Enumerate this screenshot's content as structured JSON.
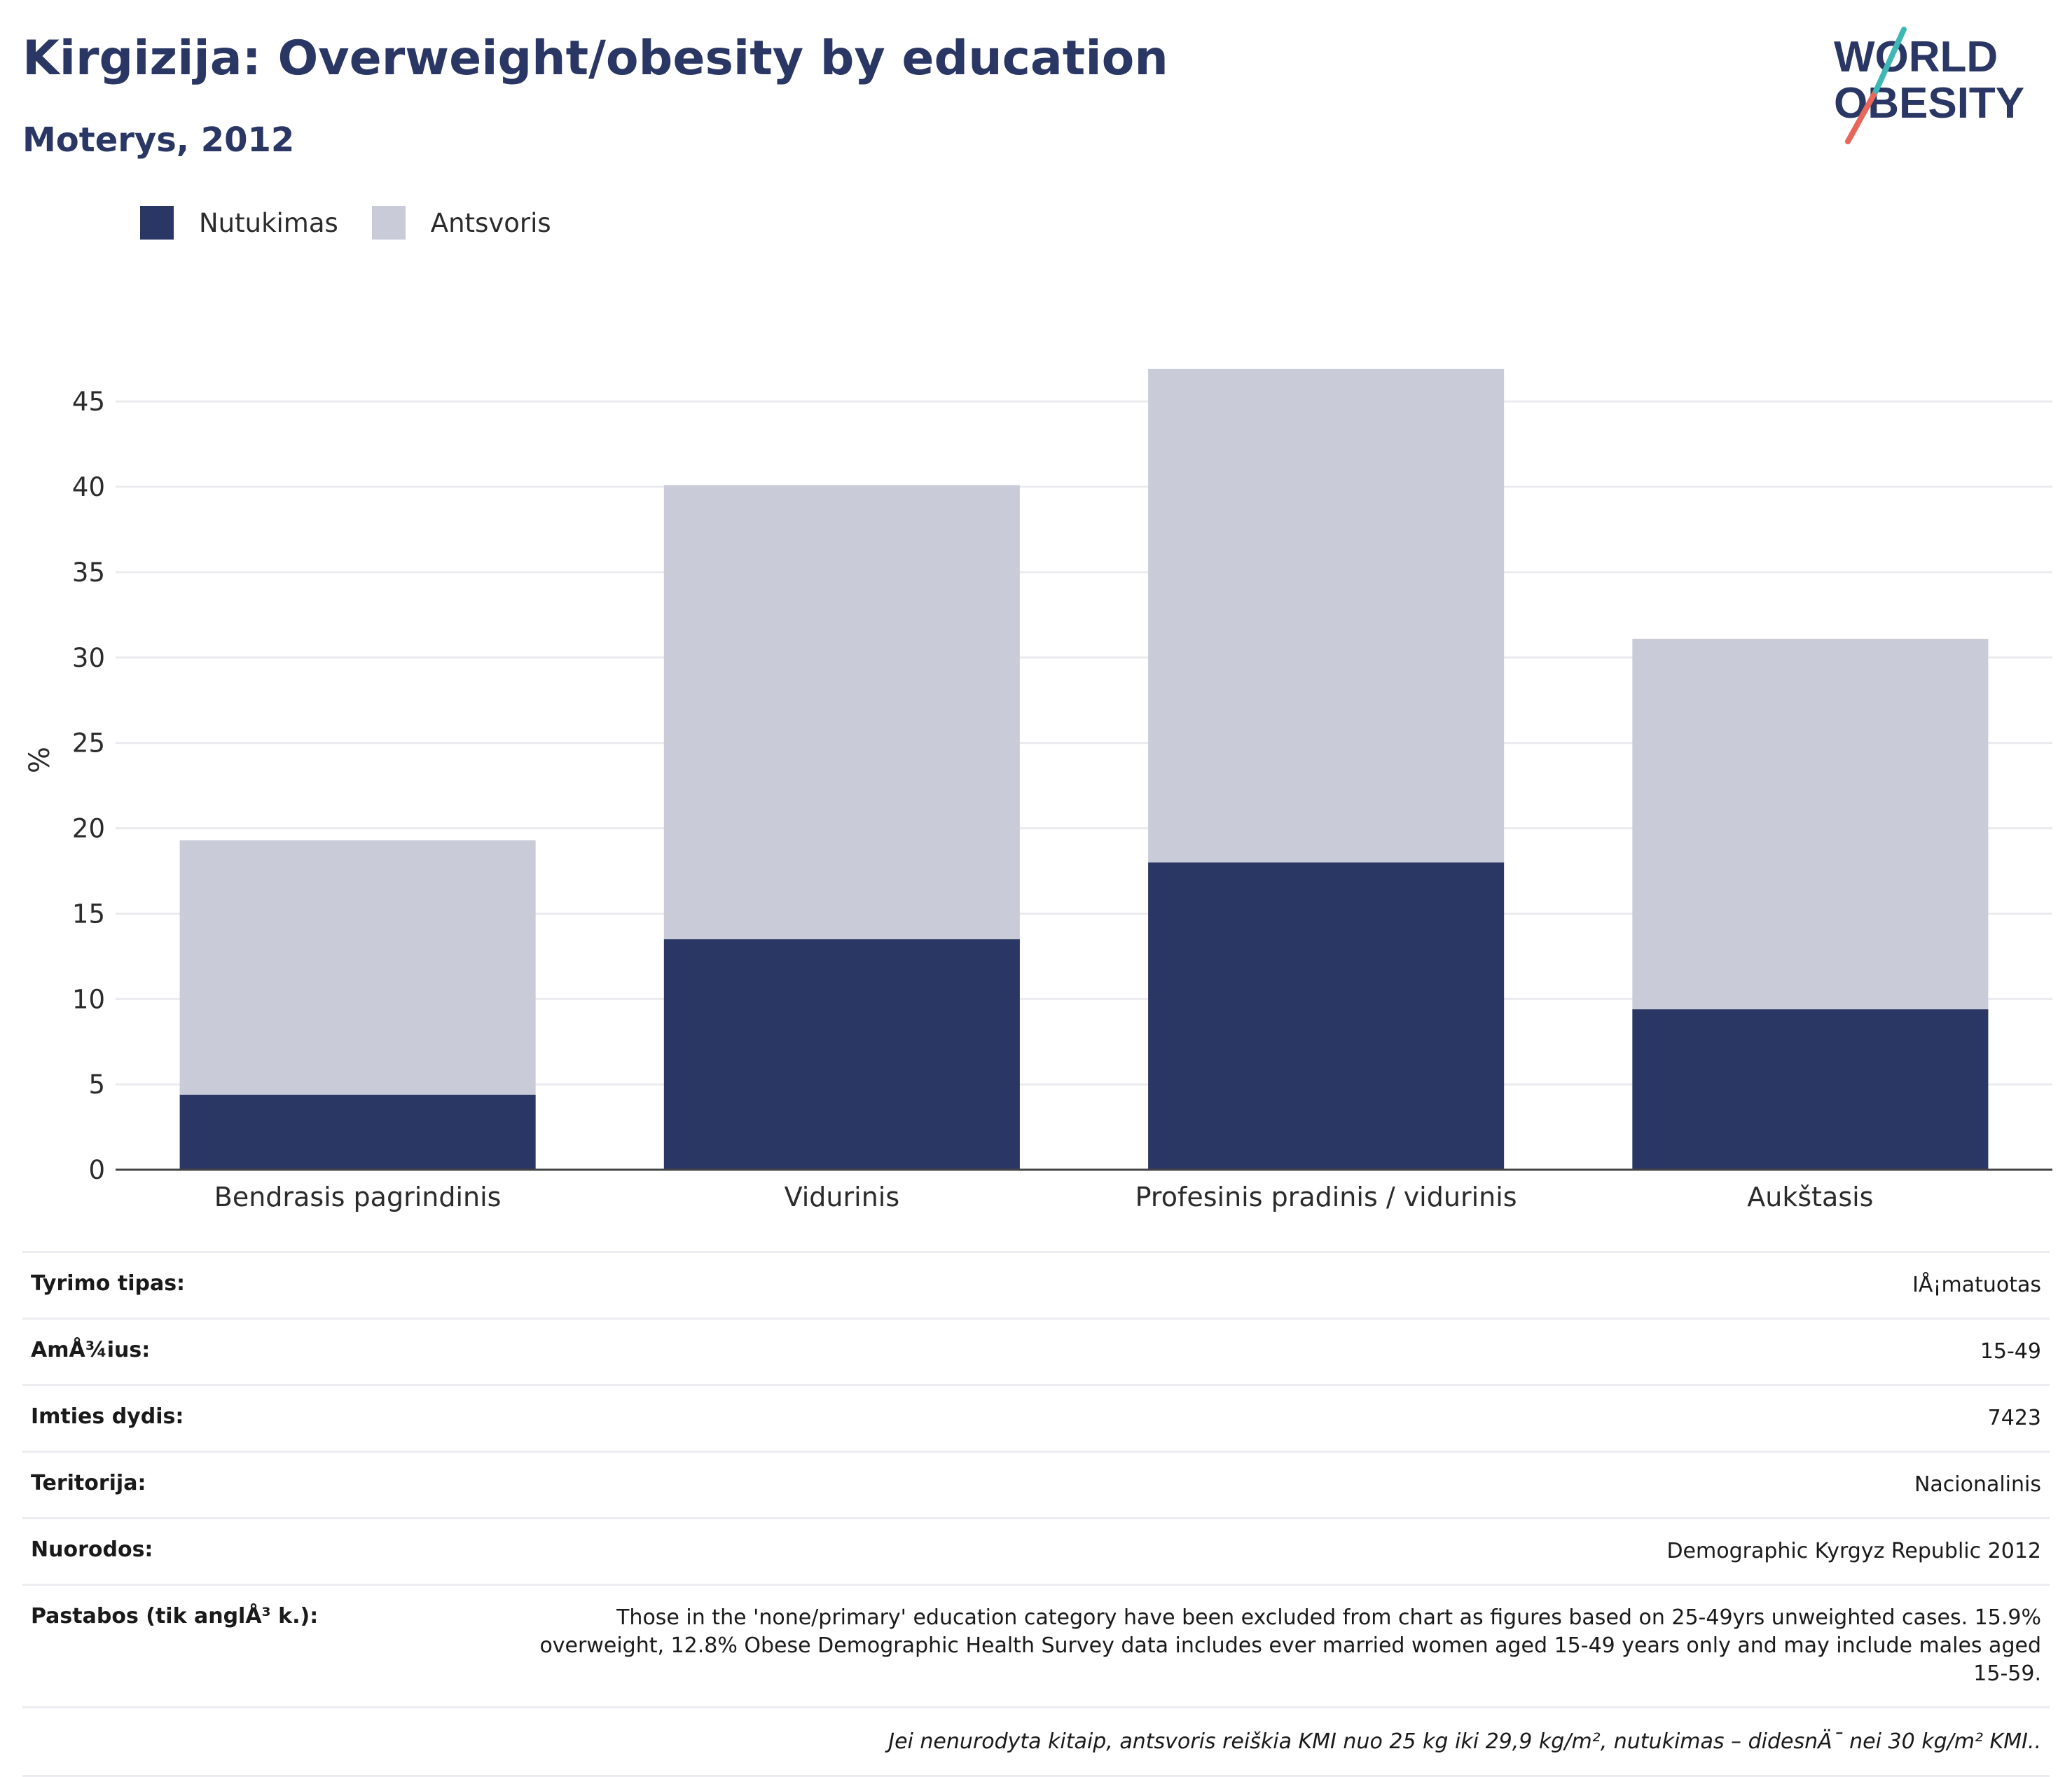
{
  "title": "Kirgizija: Overweight/obesity by education",
  "subtitle": "Moterys, 2012",
  "logo": {
    "line1": "WORLD",
    "line2": "OBESITY"
  },
  "legend": [
    {
      "label": "Nutukimas",
      "color": "#2a3663"
    },
    {
      "label": "Antsvoris",
      "color": "#c9ccd8"
    }
  ],
  "chart_data": {
    "type": "bar",
    "stacked": true,
    "ylabel": "%",
    "ylim": [
      0,
      48
    ],
    "yticks": [
      0,
      5,
      10,
      15,
      20,
      25,
      30,
      35,
      40,
      45
    ],
    "categories": [
      "Bendrasis pagrindinis",
      "Vidurinis",
      "Profesinis pradinis / vidurinis",
      "Aukštasis"
    ],
    "series": [
      {
        "name": "Nutukimas",
        "color": "#2a3663",
        "values": [
          4.4,
          13.5,
          18.0,
          9.4
        ]
      },
      {
        "name": "Antsvoris",
        "color": "#c9ccd8",
        "values": [
          14.9,
          26.6,
          28.9,
          21.7
        ]
      }
    ],
    "grid": true,
    "legend_position": "top-left"
  },
  "meta": [
    {
      "key": "Tyrimo tipas:",
      "value": "IÅ¡matuotas"
    },
    {
      "key": "AmÅ¾ius:",
      "value": "15-49"
    },
    {
      "key": "Imties dydis:",
      "value": "7423"
    },
    {
      "key": "Teritorija:",
      "value": "Nacionalinis"
    },
    {
      "key": "Nuorodos:",
      "value": "Demographic Kyrgyz Republic 2012"
    },
    {
      "key": "Pastabos (tik anglÅ³ k.):",
      "value": "Those in the 'none/primary' education category have been excluded from chart as figures based on 25-49yrs unweighted cases. 15.9% overweight, 12.8% Obese Demographic Health Survey data includes ever married women aged 15-49 years only and may include males aged 15-59."
    }
  ],
  "footnote": "Jei nenurodyta kitaip, antsvoris reiškia KMI nuo 25 kg iki 29,9 kg/m², nutukimas – didesnÄ¯ nei 30 kg/m² KMI.."
}
